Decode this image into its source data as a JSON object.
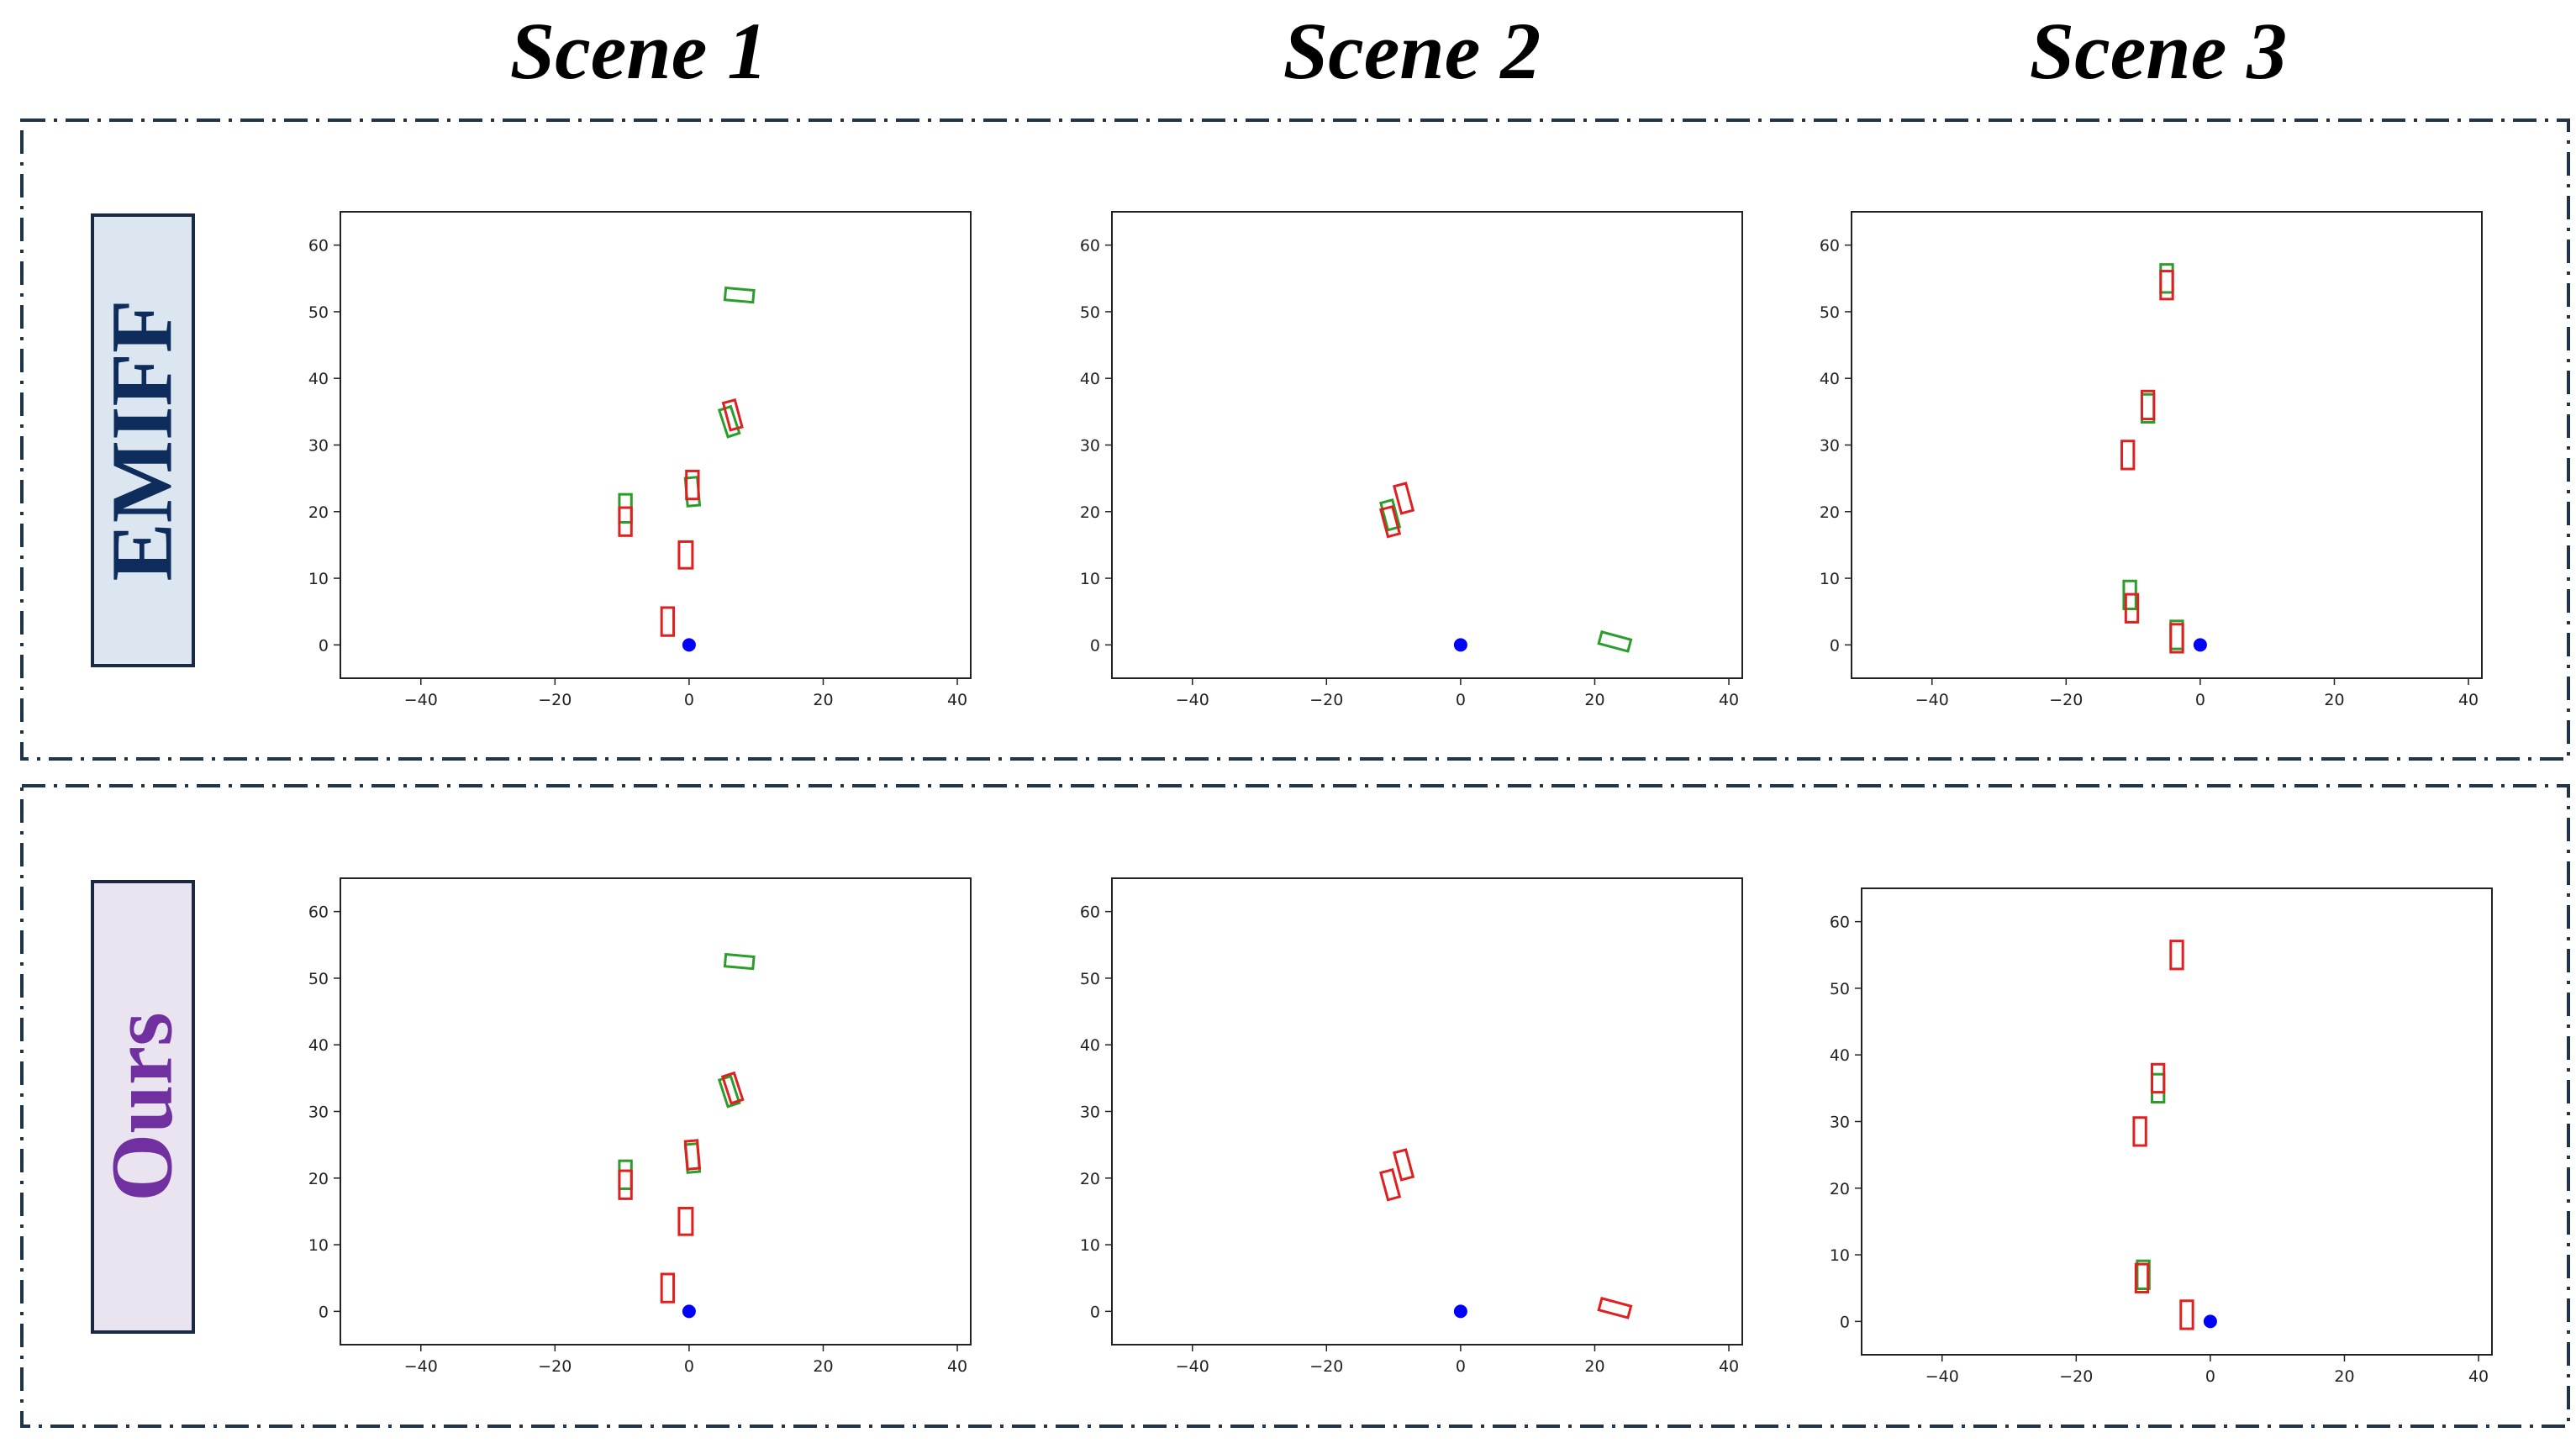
{
  "scene_titles": [
    "Scene 1",
    "Scene 2",
    "Scene 3"
  ],
  "methods": [
    {
      "label": "EMIFF",
      "text_color": "#0f2d5c",
      "bg_color": "#dce6f1"
    },
    {
      "label": "Ours",
      "text_color": "#7030a0",
      "bg_color": "#e9e4f0"
    }
  ],
  "legend_colors": {
    "ground_truth": "#2a9d2a",
    "prediction": "#e02020",
    "ego_vehicle": "#0000ff",
    "frame": "#1f3349"
  },
  "chart_data": [
    {
      "type": "scatter",
      "method": "EMIFF",
      "scene": "Scene 1",
      "xlim": [
        -52,
        42
      ],
      "ylim": [
        -5,
        65
      ],
      "xticks": [
        -40,
        -20,
        0,
        20,
        40
      ],
      "yticks": [
        0,
        10,
        20,
        30,
        40,
        50,
        60
      ],
      "ego": [
        0,
        0
      ],
      "gt_boxes": [
        {
          "x": 7.5,
          "y": 52.5,
          "w": 4.2,
          "h": 1.8,
          "angle": 5
        },
        {
          "x": 6,
          "y": 33.5,
          "w": 1.8,
          "h": 4.2,
          "angle": -18
        },
        {
          "x": 0.5,
          "y": 23,
          "w": 1.8,
          "h": 4.2,
          "angle": -5
        },
        {
          "x": -9.5,
          "y": 20.5,
          "w": 1.8,
          "h": 4.2,
          "angle": 0
        }
      ],
      "pred_boxes": [
        {
          "x": 6.5,
          "y": 34.5,
          "w": 1.8,
          "h": 4.2,
          "angle": -15
        },
        {
          "x": 0.5,
          "y": 24,
          "w": 1.8,
          "h": 4.2,
          "angle": 0
        },
        {
          "x": -9.5,
          "y": 18.5,
          "w": 1.8,
          "h": 4.2,
          "angle": 0
        },
        {
          "x": -0.5,
          "y": 13.5,
          "w": 2,
          "h": 4,
          "angle": 0
        },
        {
          "x": -3.2,
          "y": 3.5,
          "w": 1.8,
          "h": 4.2,
          "angle": 0
        }
      ]
    },
    {
      "type": "scatter",
      "method": "EMIFF",
      "scene": "Scene 2",
      "xlim": [
        -52,
        42
      ],
      "ylim": [
        -5,
        65
      ],
      "xticks": [
        -40,
        -20,
        0,
        20,
        40
      ],
      "yticks": [
        0,
        10,
        20,
        30,
        40,
        50,
        60
      ],
      "ego": [
        0,
        0
      ],
      "gt_boxes": [
        {
          "x": -10.5,
          "y": 19.5,
          "w": 1.8,
          "h": 4.2,
          "angle": -15
        },
        {
          "x": 23,
          "y": 0.5,
          "w": 4.5,
          "h": 1.8,
          "angle": 15
        }
      ],
      "pred_boxes": [
        {
          "x": -8.5,
          "y": 22,
          "w": 1.8,
          "h": 4.2,
          "angle": -15
        },
        {
          "x": -10.5,
          "y": 18.5,
          "w": 1.8,
          "h": 4.2,
          "angle": -15
        }
      ]
    },
    {
      "type": "scatter",
      "method": "EMIFF",
      "scene": "Scene 3",
      "xlim": [
        -52,
        42
      ],
      "ylim": [
        -5,
        65
      ],
      "xticks": [
        -40,
        -20,
        0,
        20,
        40
      ],
      "yticks": [
        0,
        10,
        20,
        30,
        40,
        50,
        60
      ],
      "ego": [
        0,
        0
      ],
      "gt_boxes": [
        {
          "x": -5,
          "y": 55,
          "w": 1.8,
          "h": 4.2,
          "angle": 0
        },
        {
          "x": -7.8,
          "y": 35.5,
          "w": 1.8,
          "h": 4.2,
          "angle": 0
        },
        {
          "x": -10.5,
          "y": 7.5,
          "w": 1.8,
          "h": 4.2,
          "angle": 0
        },
        {
          "x": -3.5,
          "y": 1.5,
          "w": 1.8,
          "h": 4.2,
          "angle": 0
        }
      ],
      "pred_boxes": [
        {
          "x": -5,
          "y": 54,
          "w": 1.8,
          "h": 4.2,
          "angle": 0
        },
        {
          "x": -7.8,
          "y": 36,
          "w": 1.8,
          "h": 4.2,
          "angle": 0
        },
        {
          "x": -10.8,
          "y": 28.5,
          "w": 1.8,
          "h": 4.2,
          "angle": 0
        },
        {
          "x": -10.2,
          "y": 5.5,
          "w": 1.8,
          "h": 4.2,
          "angle": 0
        },
        {
          "x": -3.5,
          "y": 1,
          "w": 1.8,
          "h": 4.2,
          "angle": 0
        }
      ]
    },
    {
      "type": "scatter",
      "method": "Ours",
      "scene": "Scene 1",
      "xlim": [
        -52,
        42
      ],
      "ylim": [
        -5,
        65
      ],
      "xticks": [
        -40,
        -20,
        0,
        20,
        40
      ],
      "yticks": [
        0,
        10,
        20,
        30,
        40,
        50,
        60
      ],
      "ego": [
        0,
        0
      ],
      "gt_boxes": [
        {
          "x": 7.5,
          "y": 52.5,
          "w": 4.2,
          "h": 1.8,
          "angle": 5
        },
        {
          "x": 6,
          "y": 33,
          "w": 1.8,
          "h": 4.2,
          "angle": -18
        },
        {
          "x": 0.5,
          "y": 23,
          "w": 1.8,
          "h": 4.2,
          "angle": -5
        },
        {
          "x": -9.5,
          "y": 20.5,
          "w": 1.8,
          "h": 4.2,
          "angle": 0
        }
      ],
      "pred_boxes": [
        {
          "x": 6.5,
          "y": 33.5,
          "w": 1.8,
          "h": 4.2,
          "angle": -18
        },
        {
          "x": 0.5,
          "y": 23.5,
          "w": 1.8,
          "h": 4.2,
          "angle": -5
        },
        {
          "x": -9.5,
          "y": 19,
          "w": 1.8,
          "h": 4.2,
          "angle": 0
        },
        {
          "x": -0.5,
          "y": 13.5,
          "w": 2,
          "h": 4,
          "angle": 0
        },
        {
          "x": -3.2,
          "y": 3.5,
          "w": 1.8,
          "h": 4.2,
          "angle": 0
        }
      ]
    },
    {
      "type": "scatter",
      "method": "Ours",
      "scene": "Scene 2",
      "xlim": [
        -52,
        42
      ],
      "ylim": [
        -5,
        65
      ],
      "xticks": [
        -40,
        -20,
        0,
        20,
        40
      ],
      "yticks": [
        0,
        10,
        20,
        30,
        40,
        50,
        60
      ],
      "ego": [
        0,
        0
      ],
      "gt_boxes": [],
      "pred_boxes": [
        {
          "x": -8.5,
          "y": 22,
          "w": 1.8,
          "h": 4.2,
          "angle": -15
        },
        {
          "x": -10.5,
          "y": 19,
          "w": 1.8,
          "h": 4.2,
          "angle": -15
        },
        {
          "x": 23,
          "y": 0.5,
          "w": 4.5,
          "h": 1.8,
          "angle": 15
        }
      ]
    },
    {
      "type": "scatter",
      "method": "Ours",
      "scene": "Scene 3",
      "xlim": [
        -52,
        42
      ],
      "ylim": [
        -5,
        65
      ],
      "xticks": [
        -40,
        -20,
        0,
        20,
        40
      ],
      "yticks": [
        0,
        10,
        20,
        30,
        40,
        50,
        60
      ],
      "ego": [
        0,
        0
      ],
      "gt_boxes": [
        {
          "x": -7.8,
          "y": 35,
          "w": 1.8,
          "h": 4.2,
          "angle": 0
        },
        {
          "x": -10,
          "y": 7,
          "w": 1.8,
          "h": 4.2,
          "angle": 0
        }
      ],
      "pred_boxes": [
        {
          "x": -5,
          "y": 55,
          "w": 1.8,
          "h": 4.2,
          "angle": 0
        },
        {
          "x": -7.8,
          "y": 36.5,
          "w": 1.8,
          "h": 4.2,
          "angle": 0
        },
        {
          "x": -10.5,
          "y": 28.5,
          "w": 1.8,
          "h": 4.2,
          "angle": 0
        },
        {
          "x": -10.2,
          "y": 6.5,
          "w": 1.8,
          "h": 4.2,
          "angle": 0
        },
        {
          "x": -3.5,
          "y": 1,
          "w": 1.8,
          "h": 4.2,
          "angle": 0
        }
      ]
    }
  ]
}
